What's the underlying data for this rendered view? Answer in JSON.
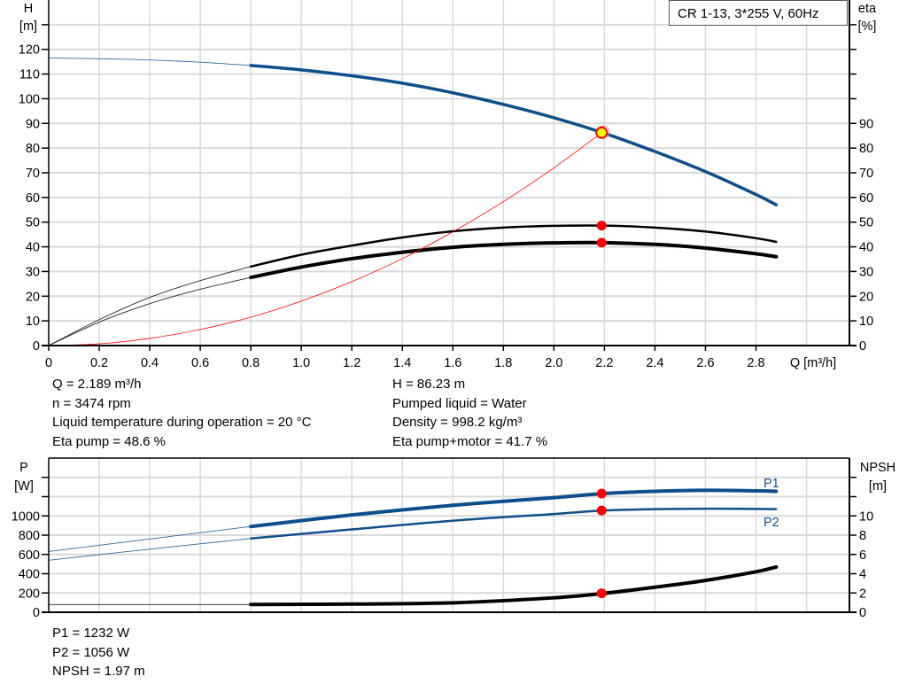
{
  "colors": {
    "head": "#0d4f8b",
    "power": "#0d4f8b",
    "efficiency": "#000000",
    "npsh": "#000000",
    "system": "#ff0000",
    "operating_point": "#ff0000",
    "duty_marker": "#ffff00",
    "grid": "#d9d9d9"
  },
  "title_box": "CR 1-13, 3*255 V, 60Hz",
  "chart_data": [
    {
      "type": "line",
      "title": "CR 1-13, 3*255 V, 60Hz",
      "xlabel": "Q [m³/h]",
      "ylabel_left": {
        "name": "H",
        "unit": "[m]"
      },
      "ylabel_right": {
        "name": "eta",
        "unit": "[%]"
      },
      "xlim": [
        0,
        3.17
      ],
      "ylim_left": [
        0,
        140
      ],
      "ylim_right": [
        0,
        140
      ],
      "grid": true,
      "x_ticks": [
        "0",
        "0.2",
        "0.4",
        "0.6",
        "0.8",
        "1.0",
        "1.2",
        "1.4",
        "1.6",
        "1.8",
        "2.0",
        "2.2",
        "2.4",
        "2.6",
        "2.8"
      ],
      "y_ticks_left": [
        "0",
        "10",
        "20",
        "30",
        "40",
        "50",
        "60",
        "70",
        "80",
        "90",
        "100",
        "110",
        "120"
      ],
      "y_ticks_right": [
        "0",
        "10",
        "20",
        "30",
        "40",
        "50",
        "60",
        "70",
        "80",
        "90"
      ],
      "thick_from_q": 0.8,
      "series": [
        {
          "key": "H",
          "axis": "left",
          "color": "#0d4f8b",
          "x": [
            0,
            0.2,
            0.4,
            0.6,
            0.8,
            1.0,
            1.2,
            1.4,
            1.6,
            1.8,
            2.0,
            2.2,
            2.4,
            2.6,
            2.8,
            2.88
          ],
          "y": [
            116.5,
            116.2,
            115.7,
            114.8,
            113.5,
            111.7,
            109.3,
            106.3,
            102.4,
            97.7,
            92.3,
            86.0,
            78.6,
            70.5,
            61.2,
            57.0
          ]
        },
        {
          "key": "eta_pump",
          "axis": "right",
          "color": "#000000",
          "x": [
            0,
            0.2,
            0.4,
            0.6,
            0.8,
            1.0,
            1.2,
            1.4,
            1.6,
            1.8,
            2.0,
            2.2,
            2.4,
            2.6,
            2.8,
            2.88
          ],
          "y": [
            0,
            10.5,
            19.5,
            26.3,
            32.0,
            36.8,
            40.5,
            43.8,
            46.3,
            47.8,
            48.5,
            48.6,
            47.8,
            46.2,
            43.5,
            42.0
          ]
        },
        {
          "key": "eta_pump_motor",
          "axis": "right",
          "color": "#000000",
          "x": [
            0,
            0.2,
            0.4,
            0.6,
            0.8,
            1.0,
            1.2,
            1.4,
            1.6,
            1.8,
            2.0,
            2.2,
            2.4,
            2.6,
            2.8,
            2.88
          ],
          "y": [
            0,
            9.5,
            17.0,
            22.8,
            27.6,
            31.8,
            35.2,
            37.8,
            39.8,
            41.0,
            41.6,
            41.7,
            41.0,
            39.5,
            37.2,
            36.0
          ]
        },
        {
          "key": "system_curve",
          "axis": "left",
          "color": "#ff0000",
          "thin": true,
          "x": [
            0,
            0.2,
            0.4,
            0.6,
            0.8,
            1.0,
            1.2,
            1.4,
            1.6,
            1.8,
            2.0,
            2.189
          ],
          "y": [
            0,
            0.7,
            2.9,
            6.5,
            11.5,
            18.0,
            25.9,
            35.2,
            46.1,
            58.3,
            72.0,
            86.23
          ]
        }
      ],
      "operating_points": [
        {
          "q": 2.189,
          "value": 86.23,
          "axis": "left",
          "style": "duty"
        },
        {
          "q": 2.189,
          "value": 48.6,
          "axis": "right"
        },
        {
          "q": 2.189,
          "value": 41.7,
          "axis": "right"
        }
      ]
    },
    {
      "type": "line",
      "ylabel_left": {
        "name": "P",
        "unit": "[W]"
      },
      "ylabel_right": {
        "name": "NPSH",
        "unit": "[m]"
      },
      "xlim": [
        0,
        3.17
      ],
      "ylim_left": [
        0,
        1600
      ],
      "ylim_right": [
        0,
        16
      ],
      "grid": true,
      "y_ticks_left": [
        "0",
        "200",
        "400",
        "600",
        "800",
        "1000"
      ],
      "y_ticks_right": [
        "0",
        "2",
        "4",
        "6",
        "8",
        "10"
      ],
      "thick_from_q": 0.8,
      "series": [
        {
          "key": "P1",
          "name": "P1",
          "axis": "left",
          "color": "#0d4f8b",
          "x": [
            0,
            0.4,
            0.8,
            1.2,
            1.6,
            2.0,
            2.2,
            2.4,
            2.6,
            2.8,
            2.88
          ],
          "y": [
            630,
            760,
            890,
            1010,
            1110,
            1190,
            1232,
            1255,
            1265,
            1260,
            1255
          ]
        },
        {
          "key": "P2",
          "name": "P2",
          "axis": "left",
          "color": "#0d4f8b",
          "x": [
            0,
            0.4,
            0.8,
            1.2,
            1.6,
            2.0,
            2.2,
            2.4,
            2.6,
            2.8,
            2.88
          ],
          "y": [
            540,
            655,
            765,
            860,
            950,
            1020,
            1056,
            1070,
            1075,
            1072,
            1070
          ]
        },
        {
          "key": "NPSH",
          "axis": "right",
          "color": "#000000",
          "x": [
            0,
            0.4,
            0.8,
            1.2,
            1.6,
            2.0,
            2.2,
            2.4,
            2.6,
            2.8,
            2.88
          ],
          "y": [
            0.8,
            0.8,
            0.8,
            0.85,
            0.98,
            1.5,
            1.97,
            2.6,
            3.3,
            4.2,
            4.7
          ]
        }
      ],
      "operating_points": [
        {
          "q": 2.189,
          "value": 1232,
          "axis": "left"
        },
        {
          "q": 2.189,
          "value": 1056,
          "axis": "left"
        },
        {
          "q": 2.189,
          "value": 1.97,
          "axis": "right"
        }
      ]
    }
  ],
  "results_top": {
    "left": [
      "Q = 2.189 m³/h",
      "n = 3474 rpm",
      "Liquid temperature during operation = 20 °C",
      "Eta pump = 48.6 %"
    ],
    "right": [
      "H = 86.23 m",
      "Pumped liquid = Water",
      "Density = 998.2 kg/m³",
      "Eta pump+motor = 41.7 %"
    ]
  },
  "results_bottom": [
    "P1 = 1232 W",
    "P2 = 1056 W",
    "NPSH = 1.97 m"
  ]
}
